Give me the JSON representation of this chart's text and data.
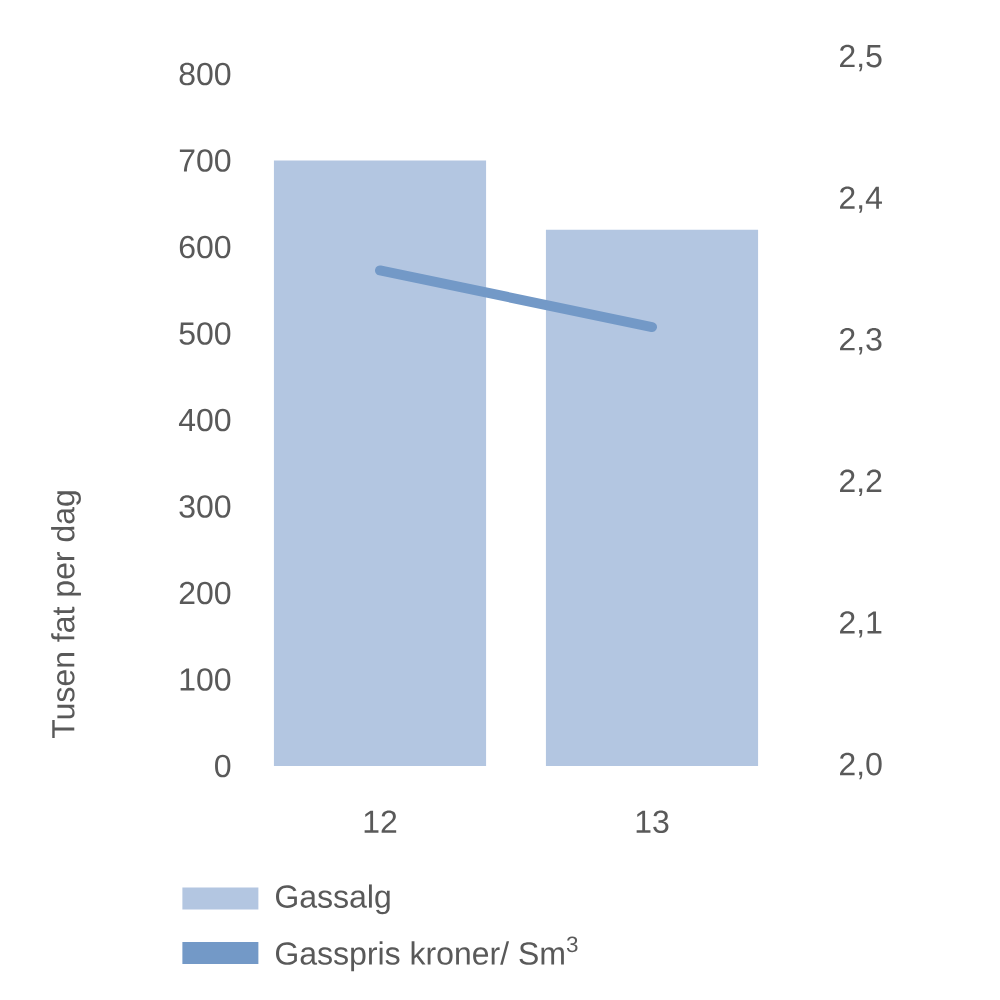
{
  "chart_data": {
    "type": "bar",
    "ylabel": "Tusen fat per dag",
    "categories": [
      "12",
      "13"
    ],
    "series": [
      {
        "name": "Gassalg",
        "color": "#b3c6e1",
        "values": [
          700,
          620
        ]
      },
      {
        "name": "Gasspris kroner/ Sm$^{3}$",
        "type": "line",
        "axis": "y2",
        "color": "#7399c7",
        "values": [
          2.35,
          2.31
        ]
      }
    ],
    "ylim": [
      0,
      800
    ],
    "yticks": [
      0,
      100,
      200,
      300,
      400,
      500,
      600,
      700,
      800
    ],
    "y2lim": [
      2.0,
      2.5
    ],
    "y2ticks": [
      {
        "value": 2.0,
        "label": "2,0"
      },
      {
        "value": 2.1,
        "label": "2,1"
      },
      {
        "value": 2.2,
        "label": "2,2"
      },
      {
        "value": 2.3,
        "label": "2,3"
      },
      {
        "value": 2.4,
        "label": "2,4"
      },
      {
        "value": 2.5,
        "label": "2,5"
      }
    ],
    "legend": "bottom"
  }
}
